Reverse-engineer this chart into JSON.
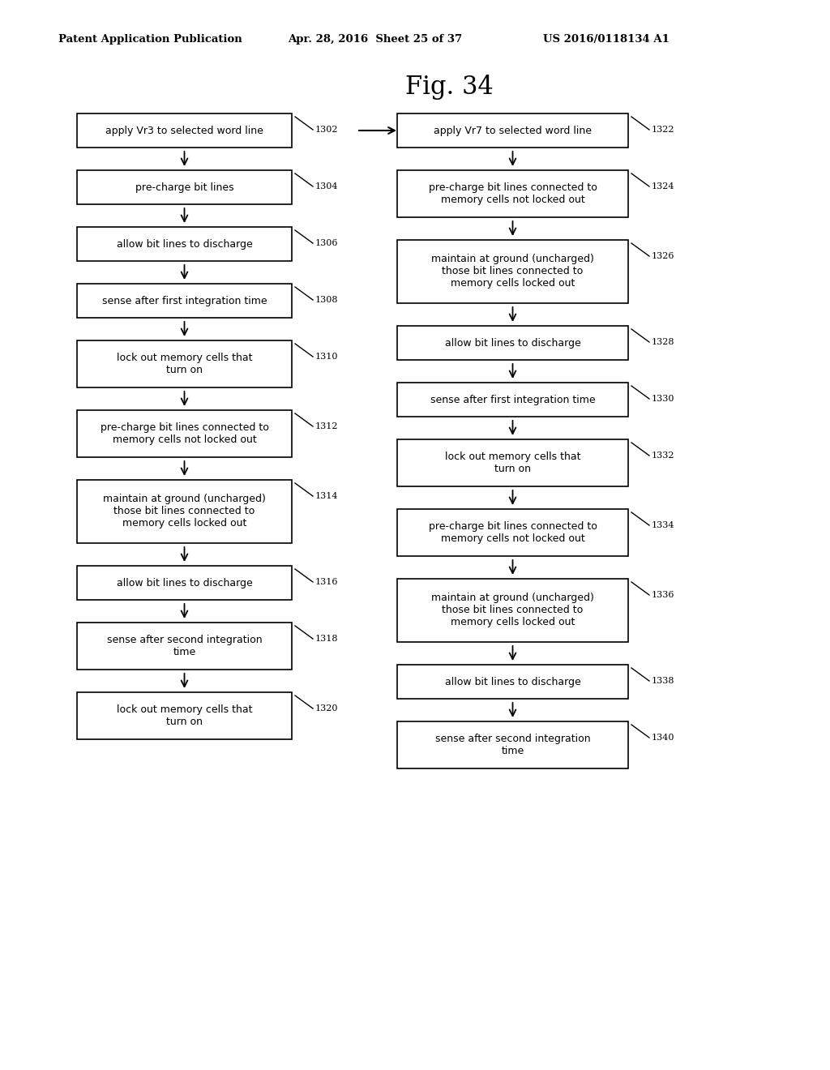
{
  "title": "Fig. 34",
  "header_left": "Patent Application Publication",
  "header_center": "Apr. 28, 2016  Sheet 25 of 37",
  "header_right": "US 2016/0118134 A1",
  "background_color": "#ffffff",
  "left_flow": {
    "steps": [
      {
        "id": "1302",
        "text": "apply Vr3 to selected word line",
        "nlines": 1
      },
      {
        "id": "1304",
        "text": "pre-charge bit lines",
        "nlines": 1
      },
      {
        "id": "1306",
        "text": "allow bit lines to discharge",
        "nlines": 1
      },
      {
        "id": "1308",
        "text": "sense after first integration time",
        "nlines": 1
      },
      {
        "id": "1310",
        "text": "lock out memory cells that\nturn on",
        "nlines": 2
      },
      {
        "id": "1312",
        "text": "pre-charge bit lines connected to\nmemory cells not locked out",
        "nlines": 2
      },
      {
        "id": "1314",
        "text": "maintain at ground (uncharged)\nthose bit lines connected to\nmemory cells locked out",
        "nlines": 3
      },
      {
        "id": "1316",
        "text": "allow bit lines to discharge",
        "nlines": 1
      },
      {
        "id": "1318",
        "text": "sense after second integration\ntime",
        "nlines": 2
      },
      {
        "id": "1320",
        "text": "lock out memory cells that\nturn on",
        "nlines": 2
      }
    ]
  },
  "right_flow": {
    "steps": [
      {
        "id": "1322",
        "text": "apply Vr7 to selected word line",
        "nlines": 1
      },
      {
        "id": "1324",
        "text": "pre-charge bit lines connected to\nmemory cells not locked out",
        "nlines": 2
      },
      {
        "id": "1326",
        "text": "maintain at ground (uncharged)\nthose bit lines connected to\nmemory cells locked out",
        "nlines": 3
      },
      {
        "id": "1328",
        "text": "allow bit lines to discharge",
        "nlines": 1
      },
      {
        "id": "1330",
        "text": "sense after first integration time",
        "nlines": 1
      },
      {
        "id": "1332",
        "text": "lock out memory cells that\nturn on",
        "nlines": 2
      },
      {
        "id": "1334",
        "text": "pre-charge bit lines connected to\nmemory cells not locked out",
        "nlines": 2
      },
      {
        "id": "1336",
        "text": "maintain at ground (uncharged)\nthose bit lines connected to\nmemory cells locked out",
        "nlines": 3
      },
      {
        "id": "1338",
        "text": "allow bit lines to discharge",
        "nlines": 1
      },
      {
        "id": "1340",
        "text": "sense after second integration\ntime",
        "nlines": 2
      }
    ]
  }
}
